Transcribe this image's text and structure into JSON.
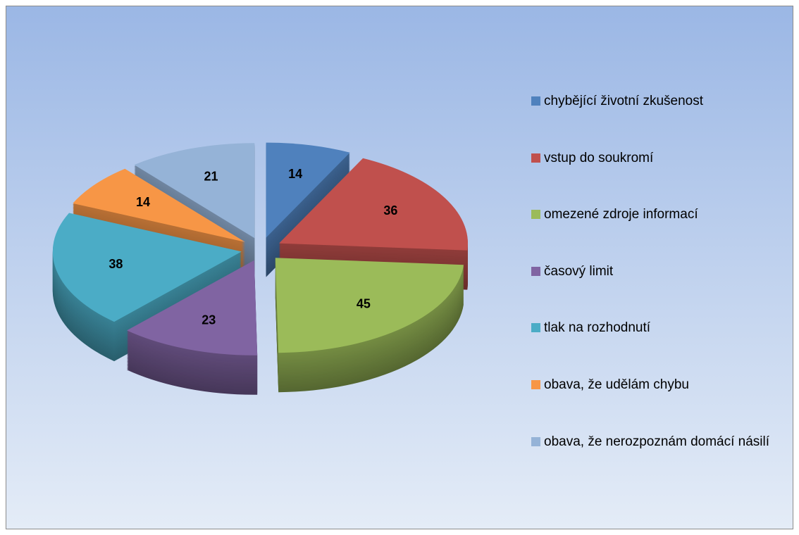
{
  "chart_data": {
    "type": "pie3d",
    "categories": [
      "chybějící životní zkušenost",
      "vstup do soukromí",
      "omezené zdroje informací",
      "časový limit",
      "tlak na rozhodnutí",
      "obava, že udělám chybu",
      "obava, že nerozpoznám domácí násilí"
    ],
    "values": [
      14,
      36,
      45,
      23,
      38,
      14,
      21
    ],
    "colors": [
      "#4f81bd",
      "#c0504d",
      "#9bbb59",
      "#8064a2",
      "#4bacc6",
      "#f79646",
      "#95b3d7"
    ],
    "legend": "right"
  }
}
